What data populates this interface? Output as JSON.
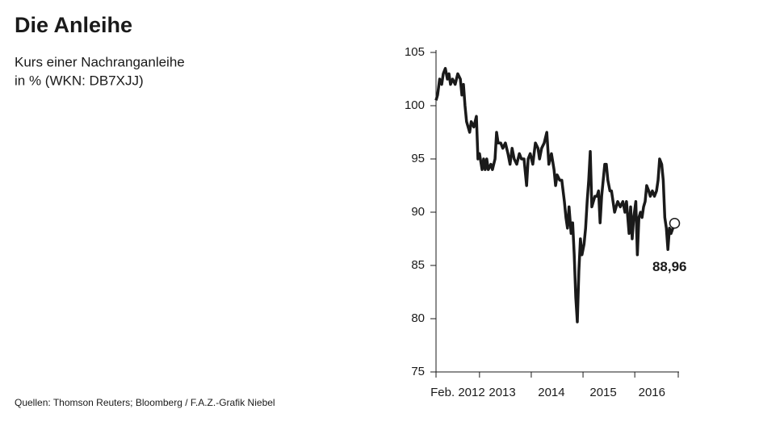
{
  "chart_data": {
    "type": "line",
    "title": "Die Anleihe",
    "subtitle": [
      "Kurs einer Nachranganleihe",
      "in % (WKN: DB7XJJ)"
    ],
    "source": "Quellen: Thomson Reuters; Bloomberg / F.A.Z.-Grafik Niebel",
    "xlim": [
      2012.16,
      2016.84
    ],
    "xtick_marks": [
      2012.16,
      2013,
      2014,
      2015,
      2016,
      2016.84
    ],
    "xticks": [
      {
        "value": 2012.58,
        "label": "Feb. 2012"
      },
      {
        "value": 2013.44,
        "label": "2013"
      },
      {
        "value": 2014.39,
        "label": "2014"
      },
      {
        "value": 2015.39,
        "label": "2015"
      },
      {
        "value": 2016.33,
        "label": "2016"
      }
    ],
    "ylim": [
      75,
      105
    ],
    "yticks": [
      75,
      80,
      85,
      90,
      95,
      100,
      105
    ],
    "grid": false,
    "series": [
      {
        "color": "#1a1a1a",
        "x": [
          2012.16,
          2012.19,
          2012.23,
          2012.27,
          2012.3,
          2012.34,
          2012.38,
          2012.41,
          2012.44,
          2012.48,
          2012.53,
          2012.58,
          2012.63,
          2012.66,
          2012.69,
          2012.72,
          2012.75,
          2012.78,
          2012.81,
          2012.84,
          2012.89,
          2012.94,
          2012.97,
          2013.0,
          2013.05,
          2013.08,
          2013.11,
          2013.14,
          2013.17,
          2013.22,
          2013.25,
          2013.3,
          2013.33,
          2013.36,
          2013.41,
          2013.45,
          2013.5,
          2013.55,
          2013.59,
          2013.63,
          2013.67,
          2013.72,
          2013.77,
          2013.81,
          2013.86,
          2013.91,
          2013.94,
          2013.98,
          2014.03,
          2014.08,
          2014.13,
          2014.16,
          2014.2,
          2014.25,
          2014.3,
          2014.34,
          2014.39,
          2014.44,
          2014.47,
          2014.5,
          2014.55,
          2014.59,
          2014.64,
          2014.67,
          2014.7,
          2014.73,
          2014.77,
          2014.8,
          2014.83,
          2014.86,
          2014.89,
          2014.92,
          2014.95,
          2014.98,
          2015.02,
          2015.05,
          2015.08,
          2015.11,
          2015.14,
          2015.17,
          2015.2,
          2015.23,
          2015.27,
          2015.3,
          2015.33,
          2015.36,
          2015.39,
          2015.42,
          2015.45,
          2015.48,
          2015.52,
          2015.55,
          2015.58,
          2015.61,
          2015.64,
          2015.67,
          2015.72,
          2015.77,
          2015.81,
          2015.84,
          2015.89,
          2015.92,
          2015.95,
          2015.98,
          2016.02,
          2016.05,
          2016.08,
          2016.11,
          2016.14,
          2016.17,
          2016.2,
          2016.23,
          2016.27,
          2016.3,
          2016.34,
          2016.38,
          2016.42,
          2016.45,
          2016.48,
          2016.52,
          2016.55,
          2016.58,
          2016.61,
          2016.64,
          2016.67,
          2016.7,
          2016.77
        ],
        "values": [
          100.5,
          101,
          102.5,
          102,
          103,
          103.5,
          102.5,
          103,
          102,
          102.5,
          102,
          103,
          102.5,
          101,
          102,
          100,
          98.5,
          98,
          97.5,
          98.5,
          98,
          99,
          95,
          95.5,
          94,
          95,
          94,
          95,
          94,
          94.5,
          94,
          95,
          97.5,
          96.5,
          96.5,
          96,
          96.5,
          95.5,
          94.5,
          96,
          95,
          94.5,
          95.5,
          95,
          95,
          92.5,
          95,
          95.5,
          94.5,
          96.5,
          96,
          95,
          96,
          96.5,
          97.5,
          94.5,
          95.5,
          94,
          92.5,
          93.5,
          93,
          93,
          91,
          89.5,
          88.5,
          90.5,
          88,
          89,
          86,
          82,
          79.7,
          84.5,
          87.5,
          86,
          87,
          88.5,
          91,
          93,
          95.7,
          90.5,
          91,
          91.5,
          91.5,
          92,
          89,
          91.5,
          93,
          94.5,
          94.5,
          93,
          92,
          92,
          91,
          90,
          90.5,
          91,
          90.5,
          91,
          90,
          91,
          88,
          90.5,
          87.5,
          89.5,
          91,
          86,
          89.5,
          90,
          89.5,
          90.5,
          91,
          92.5,
          92,
          91.5,
          92,
          91.5,
          92,
          93,
          95,
          94.5,
          93,
          89.5,
          88.5,
          86.5,
          88.5,
          88,
          88.96
        ],
        "value_labels": [
          null,
          null,
          null,
          null,
          null,
          null,
          null,
          null,
          null,
          null,
          null,
          null,
          null,
          null,
          null,
          null,
          null,
          null,
          null,
          null,
          null,
          null,
          null,
          null,
          null,
          null,
          null,
          null,
          null,
          null,
          null,
          null,
          null,
          null,
          null,
          null,
          null,
          null,
          null,
          null,
          null,
          null,
          null,
          null,
          null,
          null,
          null,
          null,
          null,
          null,
          null,
          null,
          null,
          null,
          null,
          null,
          null,
          null,
          null,
          null,
          null,
          null,
          null,
          null,
          null,
          null,
          null,
          null,
          null,
          null,
          null,
          null,
          null,
          null,
          null,
          null,
          null,
          null,
          null,
          null,
          null,
          null,
          null,
          null,
          null,
          null,
          null,
          null,
          null,
          null,
          null,
          null,
          null,
          null,
          null,
          null,
          null,
          null,
          null,
          null,
          null,
          null,
          null,
          null,
          null,
          null,
          null,
          null,
          null,
          null,
          null,
          null,
          null,
          null,
          null,
          null,
          null,
          null,
          null,
          null,
          null,
          null,
          null,
          null,
          null,
          null,
          "88,96"
        ]
      }
    ]
  }
}
